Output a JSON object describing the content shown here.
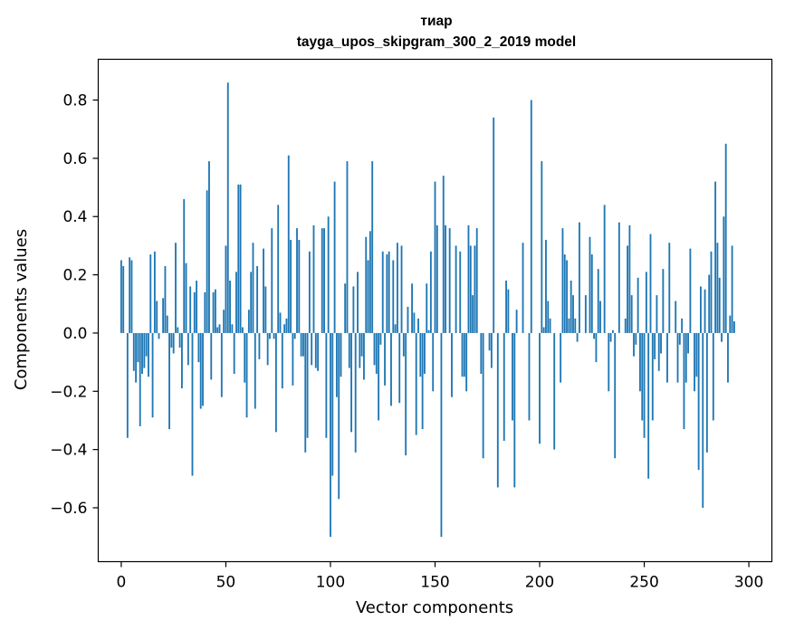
{
  "chart_data": {
    "type": "bar",
    "title": "тиар",
    "subtitle": "tayga_upos_skipgram_300_2_2019 model",
    "xlabel": "Vector components",
    "ylabel": "Components values",
    "xlim": [
      -11,
      311
    ],
    "ylim": [
      -0.785,
      0.94
    ],
    "xticks": [
      0,
      50,
      100,
      150,
      200,
      250,
      300
    ],
    "yticks": [
      -0.6,
      -0.4,
      -0.2,
      0.0,
      0.2,
      0.4,
      0.6,
      0.8
    ],
    "ytick_labels": [
      "−0.6",
      "−0.4",
      "−0.2",
      "0.0",
      "0.2",
      "0.4",
      "0.6",
      "0.8"
    ],
    "bar_color": "#1f77b4",
    "series": [
      {
        "name": "тиар",
        "values": [
          0.25,
          0.23,
          0.0,
          -0.36,
          0.26,
          0.25,
          -0.13,
          -0.17,
          -0.1,
          -0.32,
          -0.14,
          -0.12,
          -0.08,
          -0.15,
          0.27,
          -0.29,
          0.28,
          0.11,
          -0.02,
          0.0,
          0.12,
          0.23,
          0.06,
          -0.33,
          -0.05,
          -0.07,
          0.31,
          0.02,
          -0.05,
          -0.19,
          0.46,
          0.24,
          -0.11,
          0.16,
          -0.49,
          0.14,
          0.18,
          -0.1,
          -0.26,
          -0.25,
          0.14,
          0.49,
          0.59,
          -0.16,
          0.14,
          0.15,
          0.02,
          0.03,
          -0.22,
          0.08,
          0.3,
          0.86,
          0.18,
          0.03,
          -0.14,
          0.21,
          0.51,
          0.51,
          0.02,
          -0.17,
          -0.29,
          0.08,
          0.21,
          0.31,
          -0.26,
          0.23,
          -0.09,
          0.0,
          0.29,
          0.16,
          -0.11,
          -0.02,
          0.36,
          -0.02,
          -0.34,
          0.44,
          0.07,
          -0.19,
          0.03,
          0.05,
          0.61,
          0.32,
          -0.18,
          -0.02,
          0.36,
          0.32,
          -0.08,
          -0.08,
          -0.41,
          -0.36,
          0.28,
          -0.11,
          0.37,
          -0.12,
          -0.13,
          0.0,
          0.36,
          0.36,
          -0.36,
          0.4,
          -0.7,
          -0.49,
          0.52,
          -0.22,
          -0.57,
          -0.15,
          0.0,
          0.17,
          0.59,
          -0.12,
          -0.34,
          0.16,
          -0.41,
          0.21,
          -0.12,
          -0.08,
          -0.16,
          0.33,
          0.25,
          0.35,
          0.59,
          -0.11,
          -0.14,
          -0.3,
          -0.04,
          0.28,
          -0.18,
          0.27,
          0.28,
          -0.25,
          0.25,
          0.03,
          0.31,
          -0.24,
          0.3,
          -0.08,
          -0.42,
          0.09,
          0.0,
          0.17,
          0.07,
          -0.35,
          0.05,
          -0.15,
          -0.33,
          -0.14,
          0.17,
          0.01,
          0.28,
          -0.2,
          0.52,
          0.37,
          0.0,
          -0.7,
          0.54,
          0.37,
          0.0,
          0.36,
          -0.22,
          0.0,
          0.3,
          0.0,
          0.28,
          -0.15,
          -0.15,
          -0.2,
          0.37,
          0.3,
          0.13,
          0.3,
          0.36,
          0.0,
          -0.14,
          -0.43,
          0.0,
          0.0,
          -0.06,
          -0.12,
          0.74,
          0.0,
          -0.53,
          0.0,
          0.0,
          -0.37,
          0.18,
          0.15,
          0.0,
          -0.3,
          -0.53,
          0.08,
          0.0,
          0.0,
          0.31,
          0.0,
          0.0,
          -0.3,
          0.8,
          0.0,
          0.0,
          0.0,
          -0.38,
          0.59,
          0.02,
          0.32,
          0.11,
          0.05,
          0.0,
          -0.4,
          0.0,
          0.0,
          -0.17,
          0.36,
          0.27,
          0.25,
          0.05,
          0.18,
          0.13,
          0.05,
          -0.03,
          0.38,
          0.0,
          0.0,
          0.13,
          0.0,
          0.33,
          0.27,
          -0.02,
          -0.1,
          0.22,
          0.11,
          0.0,
          0.44,
          0.0,
          -0.2,
          -0.03,
          0.01,
          -0.43,
          0.0,
          0.38,
          0.0,
          0.0,
          0.05,
          0.3,
          0.37,
          0.13,
          -0.08,
          -0.04,
          0.19,
          -0.2,
          -0.3,
          -0.36,
          0.21,
          -0.5,
          0.34,
          -0.3,
          -0.09,
          0.13,
          -0.13,
          -0.07,
          0.22,
          0.0,
          -0.17,
          0.31,
          0.0,
          0.0,
          0.11,
          -0.17,
          -0.04,
          0.05,
          -0.33,
          -0.17,
          -0.07,
          0.29,
          0.0,
          -0.2,
          -0.15,
          -0.47,
          0.16,
          -0.6,
          0.15,
          -0.41,
          0.2,
          0.28,
          -0.3,
          0.52,
          0.31,
          0.19,
          -0.03,
          0.4,
          0.65,
          -0.17,
          0.06,
          0.3,
          0.04,
          0.0
        ]
      }
    ]
  }
}
